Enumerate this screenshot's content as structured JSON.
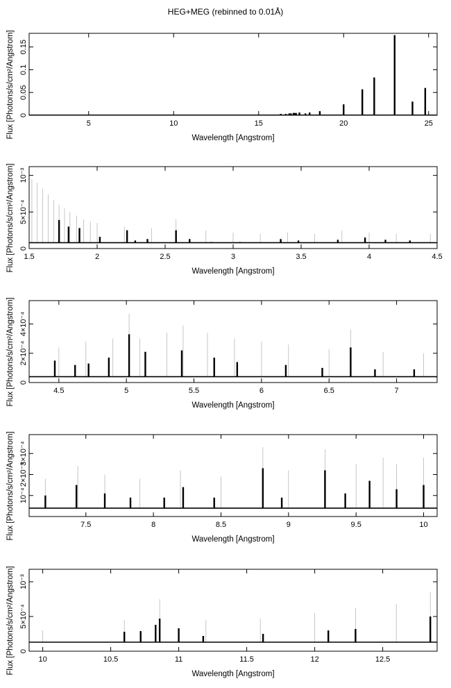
{
  "title": "HEG+MEG (rebinned to 0.01Å)",
  "chart_data": [
    {
      "type": "line",
      "xlabel": "Wavelength [Angstrom]",
      "ylabel": "Flux [Photons/s/cm²/Angstrom]",
      "xlim": [
        1.5,
        25.5
      ],
      "ylim": [
        0,
        0.18
      ],
      "xticks": [
        5,
        10,
        15,
        20,
        25
      ],
      "xtick_labels": [
        "5",
        "10",
        "15",
        "20",
        "25"
      ],
      "yticks": [
        0,
        0.05,
        0.1,
        0.15
      ],
      "ytick_labels": [
        "0",
        "0.05",
        "0.1",
        "0.15"
      ],
      "baseline": 0.0004,
      "lines": [
        [
          16.3,
          0.003
        ],
        [
          16.6,
          0.003
        ],
        [
          16.8,
          0.004
        ],
        [
          16.9,
          0.004
        ],
        [
          17.05,
          0.005
        ],
        [
          17.1,
          0.005
        ],
        [
          17.2,
          0.005
        ],
        [
          17.4,
          0.006
        ],
        [
          17.75,
          0.004
        ],
        [
          18.0,
          0.006
        ],
        [
          18.6,
          0.009
        ],
        [
          20.0,
          0.024
        ],
        [
          21.1,
          0.057
        ],
        [
          21.8,
          0.083
        ],
        [
          23.0,
          0.176
        ],
        [
          24.05,
          0.03
        ],
        [
          24.8,
          0.06
        ]
      ],
      "errors": []
    },
    {
      "type": "line",
      "xlabel": "Wavelength [Angstrom]",
      "ylabel": "Flux [Photons/s/cm²/Angstrom]",
      "xlim": [
        1.5,
        4.5
      ],
      "ylim": [
        0,
        0.00112
      ],
      "xticks": [
        1.5,
        2,
        2.5,
        3,
        3.5,
        4,
        4.5
      ],
      "xtick_labels": [
        "1.5",
        "2",
        "2.5",
        "3",
        "3.5",
        "4",
        "4.5"
      ],
      "yticks": [
        0,
        0.0005,
        0.001
      ],
      "ytick_labels": [
        "0",
        "5×10⁻⁴",
        "10⁻³"
      ],
      "baseline": 8e-05,
      "lines": [
        [
          1.72,
          0.00039
        ],
        [
          1.79,
          0.0003
        ],
        [
          1.87,
          0.00028
        ],
        [
          2.02,
          0.00016
        ],
        [
          2.22,
          0.00025
        ],
        [
          2.28,
          0.00011
        ],
        [
          2.37,
          0.00013
        ],
        [
          2.58,
          0.00025
        ],
        [
          2.68,
          0.00013
        ],
        [
          2.84,
          9e-05
        ],
        [
          3.05,
          9e-05
        ],
        [
          3.35,
          0.00013
        ],
        [
          3.48,
          0.00011
        ],
        [
          3.77,
          0.00012
        ],
        [
          3.97,
          0.00015
        ],
        [
          4.12,
          0.00012
        ],
        [
          4.3,
          0.00011
        ]
      ],
      "errors": [
        [
          1.52,
          0.00095
        ],
        [
          1.56,
          0.0009
        ],
        [
          1.6,
          0.00082
        ],
        [
          1.64,
          0.00074
        ],
        [
          1.68,
          0.00066
        ],
        [
          1.72,
          0.0006
        ],
        [
          1.76,
          0.00055
        ],
        [
          1.8,
          0.0005
        ],
        [
          1.85,
          0.00045
        ],
        [
          1.9,
          0.0004
        ],
        [
          1.95,
          0.00037
        ],
        [
          2.0,
          0.00035
        ],
        [
          2.2,
          0.0003
        ],
        [
          2.4,
          0.00028
        ],
        [
          2.58,
          0.0004
        ],
        [
          2.8,
          0.00025
        ],
        [
          3.0,
          0.00022
        ],
        [
          3.2,
          0.0002
        ],
        [
          3.4,
          0.00022
        ],
        [
          3.6,
          0.0002
        ],
        [
          3.8,
          0.00025
        ],
        [
          4.0,
          0.00022
        ],
        [
          4.2,
          0.0002
        ],
        [
          4.45,
          0.0002
        ]
      ]
    },
    {
      "type": "line",
      "xlabel": "Wavelength [Angstrom]",
      "ylabel": "Flux [Photons/s/cm²/Angstrom]",
      "xlim": [
        4.28,
        7.3
      ],
      "ylim": [
        0,
        0.00056
      ],
      "xticks": [
        4.5,
        5,
        5.5,
        6,
        6.5,
        7
      ],
      "xtick_labels": [
        "4.5",
        "5",
        "5.5",
        "6",
        "6.5",
        "7"
      ],
      "yticks": [
        0,
        0.0002,
        0.0004
      ],
      "ytick_labels": [
        "0",
        "2×10⁻⁴",
        "4×10⁻⁴"
      ],
      "baseline": 4e-05,
      "lines": [
        [
          4.47,
          0.00015
        ],
        [
          4.62,
          0.00012
        ],
        [
          4.72,
          0.00013
        ],
        [
          4.87,
          0.00017
        ],
        [
          5.02,
          0.00033
        ],
        [
          5.14,
          0.00021
        ],
        [
          5.41,
          0.00022
        ],
        [
          5.65,
          0.00017
        ],
        [
          5.82,
          0.00014
        ],
        [
          6.18,
          0.00012
        ],
        [
          6.45,
          0.0001
        ],
        [
          6.66,
          0.00024
        ],
        [
          6.84,
          9e-05
        ],
        [
          7.13,
          9e-05
        ]
      ],
      "errors": [
        [
          4.5,
          0.00024
        ],
        [
          4.7,
          0.00028
        ],
        [
          4.9,
          0.0003
        ],
        [
          5.02,
          0.00047
        ],
        [
          5.1,
          0.0003
        ],
        [
          5.3,
          0.00034
        ],
        [
          5.42,
          0.00039
        ],
        [
          5.6,
          0.00034
        ],
        [
          5.8,
          0.0003
        ],
        [
          6.0,
          0.00028
        ],
        [
          6.2,
          0.00026
        ],
        [
          6.5,
          0.00023
        ],
        [
          6.66,
          0.00036
        ],
        [
          6.9,
          0.00021
        ],
        [
          7.2,
          0.0002
        ]
      ]
    },
    {
      "type": "line",
      "xlabel": "Wavelength [Angstrom]",
      "ylabel": "Flux [Photons/s/cm²/Angstrom]",
      "xlim": [
        7.08,
        10.1
      ],
      "ylim": [
        0,
        0.00039
      ],
      "xticks": [
        7.5,
        8,
        8.5,
        9,
        9.5,
        10
      ],
      "xtick_labels": [
        "7.5",
        "8",
        "8.5",
        "9",
        "9.5",
        "10"
      ],
      "yticks": [
        0.0001,
        0.0002,
        0.0003
      ],
      "ytick_labels": [
        "10⁻⁴",
        "2×10⁻⁴",
        "3×10⁻⁴"
      ],
      "baseline": 4e-05,
      "lines": [
        [
          7.2,
          0.0001
        ],
        [
          7.43,
          0.00015
        ],
        [
          7.64,
          0.00011
        ],
        [
          7.83,
          9e-05
        ],
        [
          8.08,
          9e-05
        ],
        [
          8.22,
          0.00014
        ],
        [
          8.45,
          9e-05
        ],
        [
          8.81,
          0.00023
        ],
        [
          8.95,
          9e-05
        ],
        [
          9.27,
          0.00022
        ],
        [
          9.42,
          0.00011
        ],
        [
          9.6,
          0.00017
        ],
        [
          9.8,
          0.00013
        ],
        [
          10.0,
          0.00015
        ]
      ],
      "errors": [
        [
          7.2,
          0.00018
        ],
        [
          7.44,
          0.00024
        ],
        [
          7.64,
          0.0002
        ],
        [
          7.9,
          0.00018
        ],
        [
          8.2,
          0.00022
        ],
        [
          8.5,
          0.00019
        ],
        [
          8.81,
          0.00033
        ],
        [
          9.0,
          0.00022
        ],
        [
          9.27,
          0.00032
        ],
        [
          9.5,
          0.00025
        ],
        [
          9.7,
          0.00028
        ],
        [
          9.8,
          0.00025
        ],
        [
          10.0,
          0.00028
        ]
      ]
    },
    {
      "type": "line",
      "xlabel": "Wavelength [Angstrom]",
      "ylabel": "Flux [Photons/s/cm²/Angstrom]",
      "xlim": [
        9.9,
        12.9
      ],
      "ylim": [
        0,
        0.00118
      ],
      "xticks": [
        10,
        10.5,
        11,
        11.5,
        12,
        12.5
      ],
      "xtick_labels": [
        "10",
        "10.5",
        "11",
        "11.5",
        "12",
        "12.5"
      ],
      "yticks": [
        0,
        0.0005,
        0.001
      ],
      "ytick_labels": [
        "0",
        "5×10⁻⁴",
        "10⁻³"
      ],
      "baseline": 0.00013,
      "lines": [
        [
          10.6,
          0.00028
        ],
        [
          10.72,
          0.00029
        ],
        [
          10.83,
          0.00038
        ],
        [
          10.86,
          0.00047
        ],
        [
          11.0,
          0.00033
        ],
        [
          11.18,
          0.00022
        ],
        [
          11.62,
          0.00025
        ],
        [
          12.1,
          0.0003
        ],
        [
          12.3,
          0.00032
        ],
        [
          12.85,
          0.0005
        ]
      ],
      "errors": [
        [
          10.0,
          0.0003
        ],
        [
          10.6,
          0.00045
        ],
        [
          10.86,
          0.00075
        ],
        [
          11.2,
          0.00045
        ],
        [
          11.6,
          0.00047
        ],
        [
          12.0,
          0.00055
        ],
        [
          12.3,
          0.00062
        ],
        [
          12.6,
          0.00068
        ],
        [
          12.85,
          0.00085
        ]
      ]
    }
  ]
}
